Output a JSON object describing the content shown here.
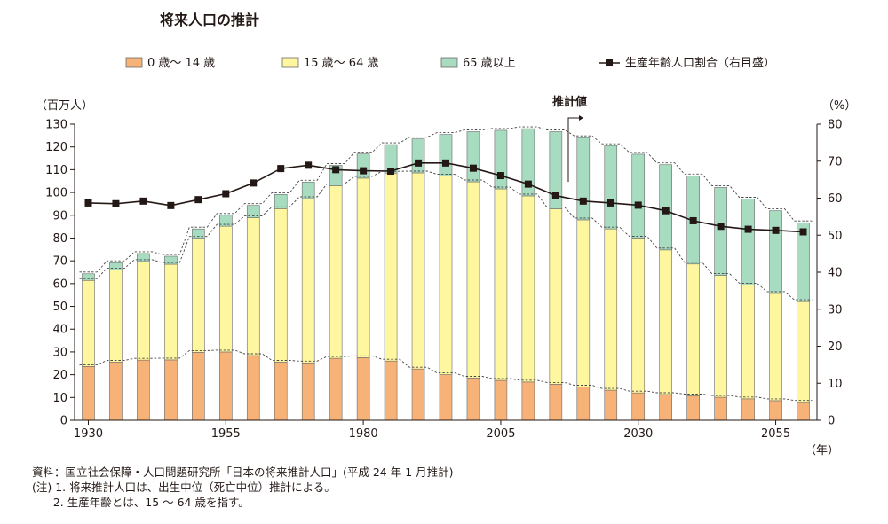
{
  "chart_data": {
    "type": "bar",
    "title": "将来人口の推計",
    "left_unit": "（百万人）",
    "right_unit": "（%）",
    "x_unit": "（年）",
    "annotation": "推計値",
    "legend": [
      "0 歳～ 14 歳",
      "15 歳～ 64 歳",
      "65 歳以上",
      "生産年齢人口割合（右目盛）"
    ],
    "colors": {
      "age_0_14": "#f7b278",
      "age_15_64": "#fff6a0",
      "age_65_plus": "#a8dcc0",
      "ratio_line": "#231815",
      "outline": "#6b6b6b"
    },
    "y_left": {
      "min": 0,
      "max": 130,
      "step": 10,
      "ticks": [
        "0",
        "10",
        "20",
        "30",
        "40",
        "50",
        "60",
        "70",
        "80",
        "90",
        "100",
        "110",
        "120",
        "130"
      ]
    },
    "y_right": {
      "min": 0,
      "max": 80,
      "step": 10,
      "ticks": [
        "0",
        "10",
        "20",
        "30",
        "40",
        "50",
        "60",
        "70",
        "80"
      ]
    },
    "x_tick_labels": [
      {
        "year": 1930,
        "label": "1930"
      },
      {
        "year": 1955,
        "label": "1955"
      },
      {
        "year": 1980,
        "label": "1980"
      },
      {
        "year": 2005,
        "label": "2005"
      },
      {
        "year": 2030,
        "label": "2030"
      },
      {
        "year": 2055,
        "label": "2055"
      }
    ],
    "projection_start_year": 2010,
    "categories": [
      1930,
      1935,
      1940,
      1945,
      1950,
      1955,
      1960,
      1965,
      1970,
      1975,
      1980,
      1985,
      1990,
      1995,
      2000,
      2005,
      2010,
      2015,
      2020,
      2025,
      2030,
      2035,
      2040,
      2045,
      2050,
      2055,
      2060
    ],
    "series": [
      {
        "name": "0 歳～ 14 歳",
        "values": [
          23.6,
          25.5,
          26.4,
          26.5,
          29.8,
          30.0,
          28.4,
          25.5,
          25.2,
          27.2,
          27.5,
          26.0,
          22.5,
          20.0,
          18.5,
          17.5,
          16.8,
          15.8,
          14.6,
          13.2,
          12.0,
          11.3,
          10.7,
          10.1,
          9.4,
          8.6,
          7.9
        ]
      },
      {
        "name": "15 歳～ 64 歳",
        "values": [
          37.8,
          40.5,
          43.3,
          42.0,
          50.1,
          55.2,
          60.5,
          67.4,
          72.1,
          75.8,
          78.8,
          82.5,
          86.1,
          87.2,
          86.2,
          84.1,
          81.7,
          77.0,
          73.4,
          70.8,
          68.0,
          63.5,
          57.9,
          53.5,
          50.0,
          47.1,
          44.2
        ]
      },
      {
        "name": "65 歳以上",
        "values": [
          2.9,
          3.2,
          3.5,
          3.5,
          4.1,
          4.8,
          5.4,
          6.2,
          7.3,
          8.9,
          10.6,
          12.5,
          14.9,
          18.3,
          22.0,
          25.7,
          29.5,
          33.9,
          36.1,
          36.6,
          36.8,
          37.4,
          38.7,
          38.6,
          37.7,
          36.3,
          34.6
        ]
      },
      {
        "name": "生産年齢人口割合（右目盛）",
        "axis": "right",
        "values": [
          58.7,
          58.5,
          59.2,
          58.0,
          59.6,
          61.2,
          64.1,
          68.0,
          68.9,
          67.7,
          67.4,
          67.3,
          69.5,
          69.5,
          68.1,
          66.1,
          63.8,
          60.7,
          59.2,
          58.7,
          58.1,
          56.6,
          53.9,
          52.4,
          51.6,
          51.3,
          50.9
        ]
      }
    ]
  },
  "notes": [
    "資料：国立社会保障・人口問題研究所「日本の将来推計人口」(平成 24 年 1 月推計)",
    "(注) 1. 将来推計人口は、出生中位（死亡中位）推計による。",
    "      2. 生産年齢とは、15 ～ 64 歳を指す。"
  ]
}
